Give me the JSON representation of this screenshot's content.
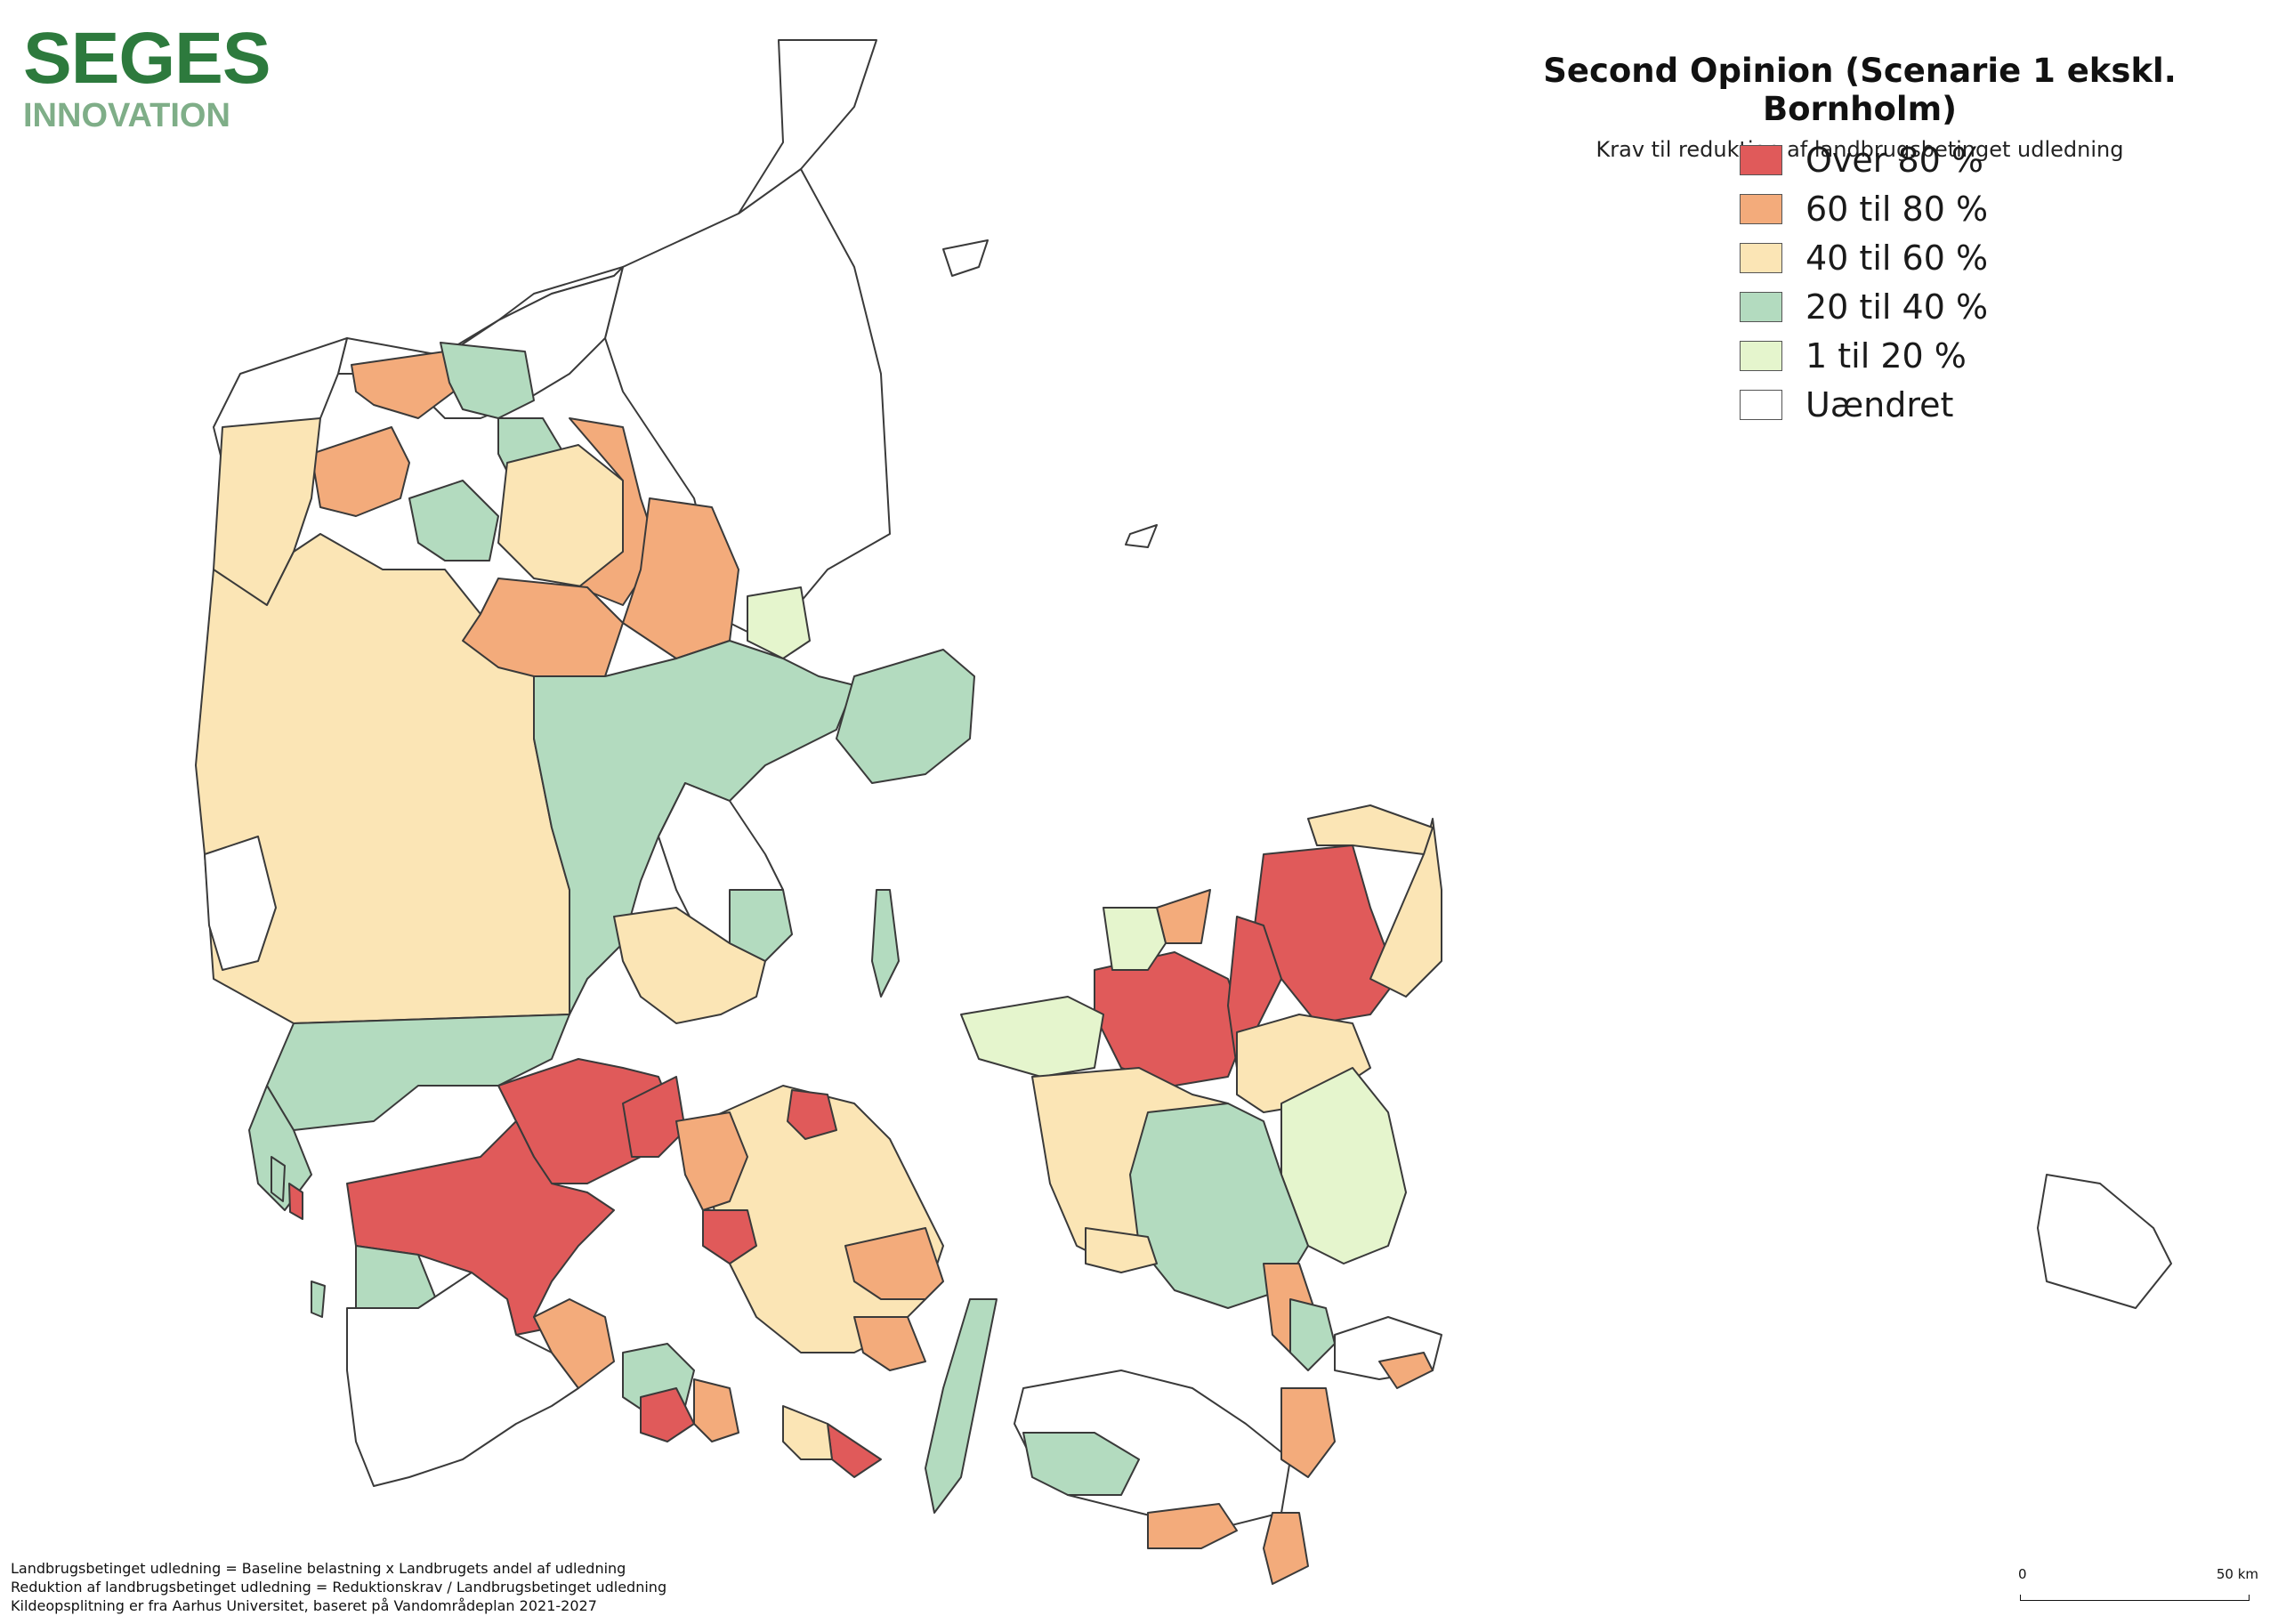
{
  "logo": {
    "main": "SEGES",
    "sub": "INNOVATION"
  },
  "map": {
    "title": "Second Opinion (Scenarie 1 ekskl. Bornholm)",
    "subtitle": "Krav til reduktion af landbrugsbetinget udledning"
  },
  "legend": [
    {
      "label": "Over 80 %",
      "color": "#e05a5a"
    },
    {
      "label": "60 til 80 %",
      "color": "#f3ab7b"
    },
    {
      "label": "40 til 60 %",
      "color": "#fbe5b5"
    },
    {
      "label": "20 til 40 %",
      "color": "#b3dbbf"
    },
    {
      "label": "1 til 20 %",
      "color": "#e5f5cd"
    },
    {
      "label": "Uændret",
      "color": "#ffffff"
    }
  ],
  "footnotes": [
    "Landbrugsbetinget udledning = Baseline belastning x Landbrugets andel af udledning",
    "Reduktion af landbrugsbetinget udledning = Reduktionskrav / Landbrugsbetinget udledning",
    "Kildeopsplitning er fra Aarhus Universitet, baseret på Vandområdeplan 2021-2027"
  ],
  "scale": {
    "start": "0",
    "end": "50 km"
  }
}
